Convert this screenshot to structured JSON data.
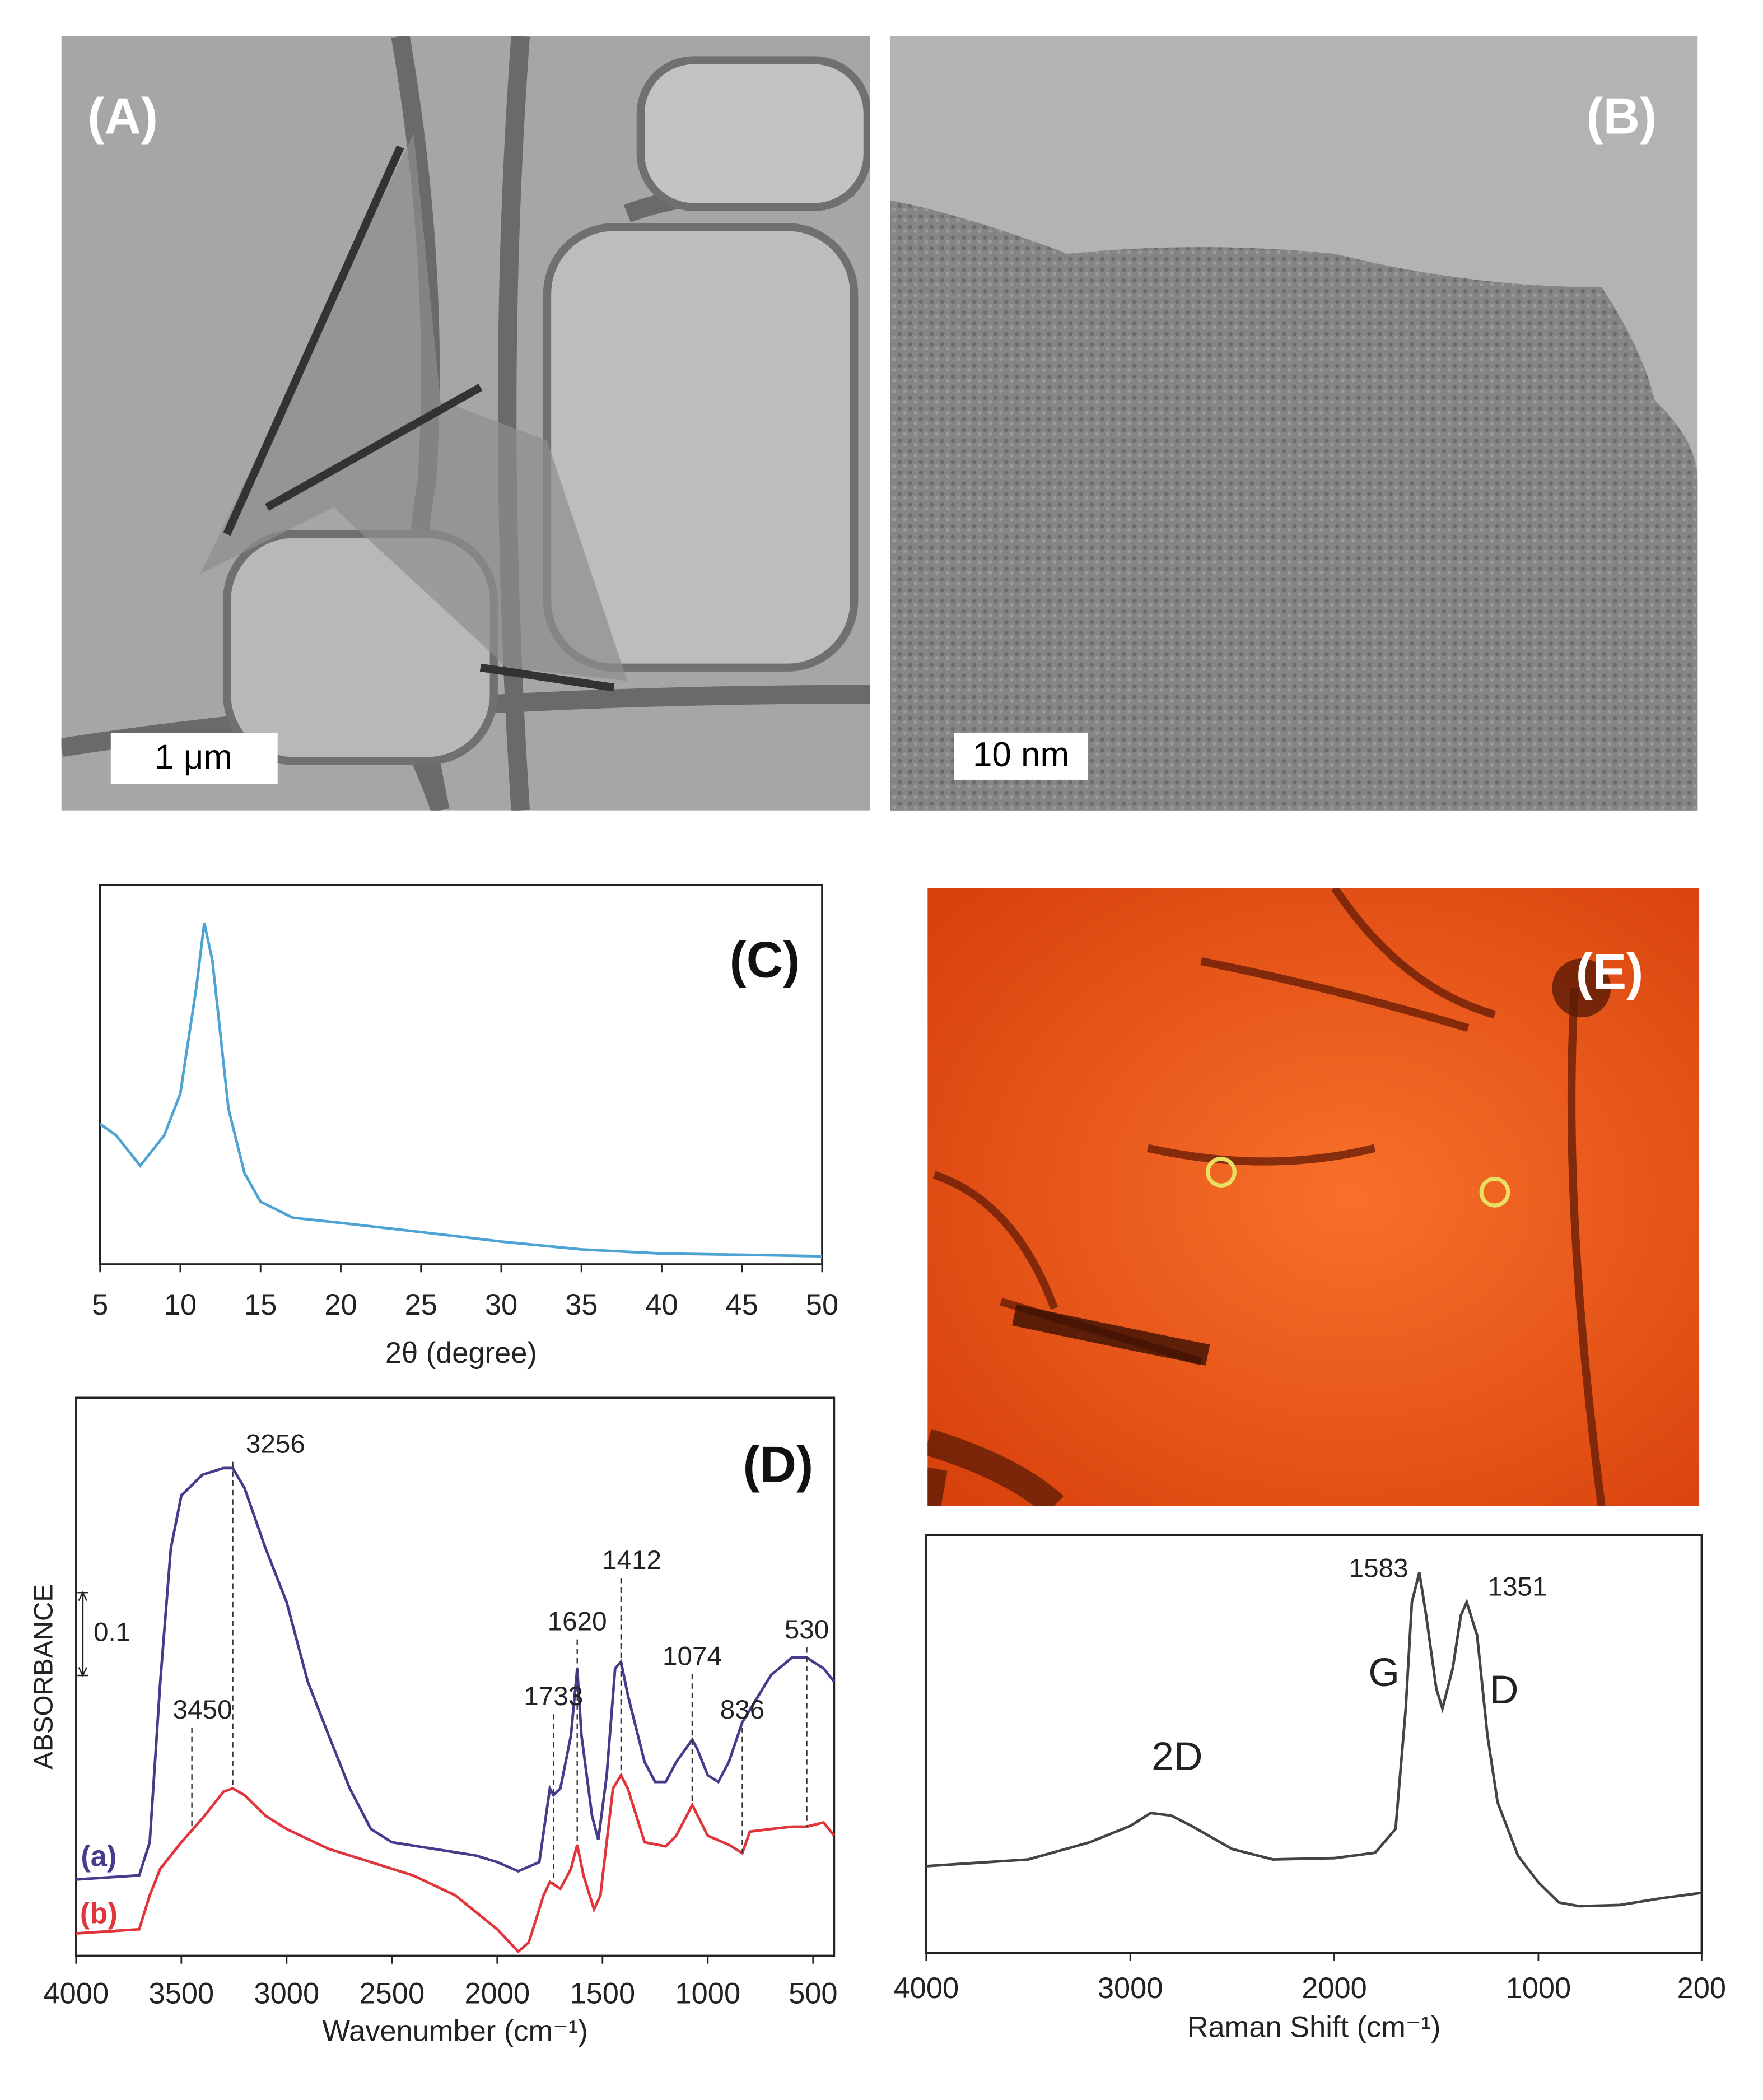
{
  "images": [
    {
      "label": "(A)",
      "scale_bar": "1 μm"
    },
    {
      "label": "(B)",
      "scale_bar": "10 nm"
    },
    {
      "label": "(E)"
    }
  ],
  "chart_data": [
    {
      "type": "line",
      "label": "(C)",
      "xlabel": "2θ (degree)",
      "xlim": [
        5,
        50
      ],
      "xticks": [
        5,
        10,
        15,
        20,
        25,
        30,
        35,
        40,
        45,
        50
      ],
      "ylim": [
        0,
        100
      ],
      "series": [
        {
          "color": "#4ca3d4",
          "x": [
            5,
            6,
            7.5,
            9,
            10,
            11,
            11.5,
            12,
            13,
            14,
            15,
            17,
            20,
            25,
            30,
            35,
            40,
            45,
            50
          ],
          "values": [
            37,
            34,
            26,
            34,
            45,
            73,
            90,
            80,
            41,
            24,
            16.5,
            12.3,
            10.9,
            8.5,
            6,
            3.9,
            2.8,
            2.5,
            2.1
          ]
        }
      ]
    },
    {
      "type": "line",
      "label": "(D)",
      "xlabel": "Wavenumber (cm⁻¹)",
      "ylabel": "ABSORBANCE",
      "xlim": [
        4000,
        400
      ],
      "xticks": [
        4000,
        3500,
        3000,
        2500,
        2000,
        1500,
        1000,
        500
      ],
      "ylim": [
        0,
        0.674
      ],
      "scale_bar": 0.1,
      "peaks": [
        3256,
        3450,
        1733,
        1620,
        1412,
        1074,
        836,
        530
      ],
      "series": [
        {
          "name": "(a)",
          "color": "#4a3a8c",
          "x": [
            4000,
            3700,
            3650,
            3600,
            3550,
            3500,
            3400,
            3300,
            3256,
            3200,
            3100,
            3000,
            2900,
            2800,
            2700,
            2600,
            2500,
            2300,
            2100,
            2000,
            1900,
            1800,
            1750,
            1733,
            1700,
            1650,
            1620,
            1600,
            1550,
            1520,
            1480,
            1440,
            1412,
            1380,
            1300,
            1250,
            1200,
            1150,
            1074,
            1050,
            1000,
            950,
            900,
            836,
            700,
            600,
            530,
            450,
            400
          ],
          "values": [
            0.092,
            0.097,
            0.137,
            0.331,
            0.492,
            0.556,
            0.581,
            0.589,
            0.589,
            0.565,
            0.492,
            0.427,
            0.331,
            0.266,
            0.202,
            0.153,
            0.137,
            0.129,
            0.121,
            0.113,
            0.102,
            0.113,
            0.202,
            0.194,
            0.202,
            0.266,
            0.347,
            0.266,
            0.169,
            0.14,
            0.218,
            0.347,
            0.355,
            0.315,
            0.234,
            0.21,
            0.21,
            0.234,
            0.261,
            0.25,
            0.218,
            0.21,
            0.234,
            0.282,
            0.339,
            0.36,
            0.36,
            0.347,
            0.331
          ]
        },
        {
          "name": "(b)",
          "color": "#e0353a",
          "x": [
            4000,
            3700,
            3650,
            3600,
            3500,
            3400,
            3300,
            3256,
            3200,
            3100,
            3000,
            2800,
            2600,
            2400,
            2200,
            2000,
            1900,
            1850,
            1780,
            1750,
            1700,
            1650,
            1620,
            1590,
            1540,
            1510,
            1450,
            1412,
            1380,
            1300,
            1200,
            1150,
            1074,
            1000,
            900,
            836,
            800,
            700,
            600,
            530,
            450,
            400
          ],
          "values": [
            0.027,
            0.032,
            0.073,
            0.105,
            0.137,
            0.166,
            0.198,
            0.202,
            0.194,
            0.169,
            0.153,
            0.129,
            0.113,
            0.097,
            0.073,
            0.032,
            0.005,
            0.016,
            0.073,
            0.089,
            0.081,
            0.105,
            0.134,
            0.097,
            0.056,
            0.073,
            0.202,
            0.218,
            0.202,
            0.137,
            0.132,
            0.145,
            0.182,
            0.145,
            0.134,
            0.124,
            0.15,
            0.153,
            0.156,
            0.156,
            0.161,
            0.145
          ]
        }
      ]
    },
    {
      "type": "line",
      "xlabel": "Raman Shift (cm⁻¹)",
      "xlim": [
        4000,
        200
      ],
      "xticks": [
        4000,
        3000,
        2000,
        1000,
        200
      ],
      "ylim": [
        0,
        100
      ],
      "peaks": [
        1583,
        1351
      ],
      "bands": [
        "G",
        "D",
        "2D"
      ],
      "series": [
        {
          "color": "#444444",
          "x": [
            4000,
            3500,
            3200,
            3000,
            2900,
            2800,
            2700,
            2500,
            2300,
            2000,
            1800,
            1700,
            1650,
            1620,
            1583,
            1550,
            1500,
            1470,
            1420,
            1380,
            1351,
            1300,
            1250,
            1200,
            1100,
            1000,
            900,
            800,
            600,
            400,
            200
          ],
          "values": [
            20.8,
            22.4,
            26.5,
            30.4,
            33.5,
            32.9,
            30.4,
            24.9,
            22.4,
            22.7,
            24,
            29.7,
            58.5,
            84,
            91.1,
            80.8,
            63.3,
            58.5,
            68.1,
            80.8,
            84,
            76,
            52.1,
            36.1,
            23.3,
            16.9,
            12.1,
            11.2,
            11.5,
            13.1,
            14.4
          ]
        }
      ]
    }
  ]
}
